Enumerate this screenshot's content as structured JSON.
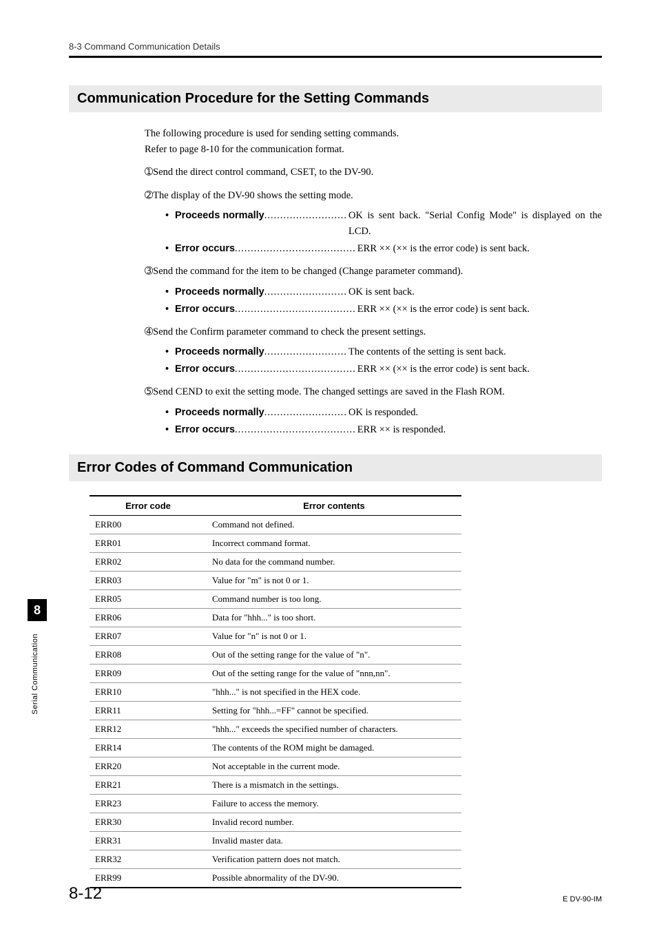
{
  "header": {
    "breadcrumb": "8-3 Command Communication Details"
  },
  "section1": {
    "title": "Communication Procedure for the Setting Commands",
    "intro_line1": "The following procedure is used for sending setting commands.",
    "intro_line2": "Refer to page 8-10 for the communication format.",
    "steps": [
      {
        "num": "➀",
        "text": "Send the direct control command, CSET, to the DV-90.",
        "bullets": []
      },
      {
        "num": "➁",
        "text": "The display of the DV-90 shows the setting mode.",
        "bullets": [
          {
            "label": "Proceeds normally",
            "dots": "..........................",
            "value": "OK is sent back. \"Serial Config Mode\" is displayed on the LCD.",
            "wide": true
          },
          {
            "label": "Error occurs",
            "dots": "......................................",
            "value": "ERR ×× (×× is the error code) is sent back."
          }
        ]
      },
      {
        "num": "➂",
        "text": "Send the command for the item to be changed (Change parameter command).",
        "bullets": [
          {
            "label": "Proceeds normally",
            "dots": "..........................",
            "value": "OK is sent back."
          },
          {
            "label": "Error occurs",
            "dots": "......................................",
            "value": "ERR ×× (×× is the error code) is sent back."
          }
        ]
      },
      {
        "num": "➃",
        "text": "Send the Confirm parameter command to check the present settings.",
        "bullets": [
          {
            "label": "Proceeds normally",
            "dots": "..........................",
            "value": "The contents of the setting is sent back."
          },
          {
            "label": "Error occurs",
            "dots": "......................................",
            "value": "ERR ×× (×× is the error code) is sent back."
          }
        ]
      },
      {
        "num": "➄",
        "text": "Send CEND to exit the setting mode. The changed settings are saved in the Flash ROM.",
        "bullets": [
          {
            "label": "Proceeds normally",
            "dots": "..........................",
            "value": "OK is responded."
          },
          {
            "label": "Error occurs",
            "dots": "......................................",
            "value": "ERR ×× is responded."
          }
        ]
      }
    ]
  },
  "section2": {
    "title": "Error Codes of Command Communication",
    "columns": [
      "Error code",
      "Error contents"
    ],
    "rows": [
      [
        "ERR00",
        "Command not defined."
      ],
      [
        "ERR01",
        "Incorrect command format."
      ],
      [
        "ERR02",
        "No data for the command number."
      ],
      [
        "ERR03",
        "Value for \"m\" is not 0 or 1."
      ],
      [
        "ERR05",
        "Command number is too long."
      ],
      [
        "ERR06",
        "Data for \"hhh...\" is too short."
      ],
      [
        "ERR07",
        "Value for \"n\" is not 0 or 1."
      ],
      [
        "ERR08",
        "Out of the setting range for the value of \"n\"."
      ],
      [
        "ERR09",
        "Out of the setting range for the value of \"nnn,nn\"."
      ],
      [
        "ERR10",
        "\"hhh...\" is not specified in the HEX code."
      ],
      [
        "ERR11",
        "Setting for \"hhh...=FF\" cannot be specified."
      ],
      [
        "ERR12",
        "\"hhh...\" exceeds the specified number of characters."
      ],
      [
        "ERR14",
        "The contents of the ROM might be damaged."
      ],
      [
        "ERR20",
        "Not acceptable in the current mode."
      ],
      [
        "ERR21",
        "There is a mismatch in the settings."
      ],
      [
        "ERR23",
        "Failure to access the memory."
      ],
      [
        "ERR30",
        "Invalid record number."
      ],
      [
        "ERR31",
        "Invalid master data."
      ],
      [
        "ERR32",
        "Verification pattern does not match."
      ],
      [
        "ERR99",
        "Possible abnormality of the DV-90."
      ]
    ]
  },
  "sidebar": {
    "chapter": "8",
    "label": "Serial Communication"
  },
  "footer": {
    "page": "8-12",
    "doc": "E DV-90-IM"
  }
}
